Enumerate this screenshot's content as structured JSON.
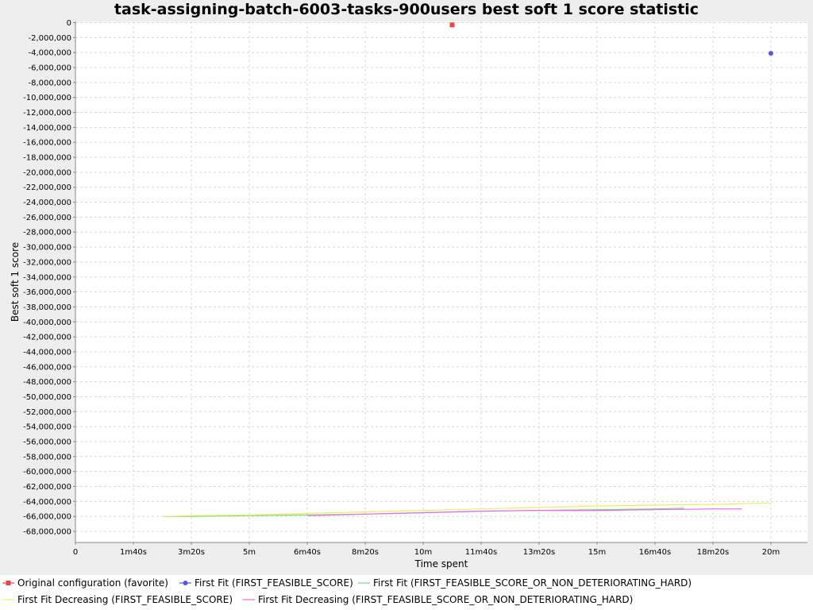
{
  "chart_data": {
    "type": "line",
    "title": "task-assigning-batch-6003-tasks-900users best soft 1 score statistic",
    "xlabel": "Time spent",
    "ylabel": "Best soft 1 score",
    "xlim": [
      0,
      1260
    ],
    "ylim": [
      -69000000,
      200000
    ],
    "x_ticks": [
      {
        "value": 0,
        "label": "0"
      },
      {
        "value": 100,
        "label": "1m40s"
      },
      {
        "value": 200,
        "label": "3m20s"
      },
      {
        "value": 300,
        "label": "5m"
      },
      {
        "value": 400,
        "label": "6m40s"
      },
      {
        "value": 500,
        "label": "8m20s"
      },
      {
        "value": 600,
        "label": "10m"
      },
      {
        "value": 700,
        "label": "11m40s"
      },
      {
        "value": 800,
        "label": "13m20s"
      },
      {
        "value": 900,
        "label": "15m"
      },
      {
        "value": 1000,
        "label": "16m40s"
      },
      {
        "value": 1100,
        "label": "18m20s"
      },
      {
        "value": 1200,
        "label": "20m"
      }
    ],
    "y_ticks": [
      {
        "value": 0,
        "label": "0"
      },
      {
        "value": -2000000,
        "label": "-2,000,000"
      },
      {
        "value": -4000000,
        "label": "-4,000,000"
      },
      {
        "value": -6000000,
        "label": "-6,000,000"
      },
      {
        "value": -8000000,
        "label": "-8,000,000"
      },
      {
        "value": -10000000,
        "label": "-10,000,000"
      },
      {
        "value": -12000000,
        "label": "-12,000,000"
      },
      {
        "value": -14000000,
        "label": "-14,000,000"
      },
      {
        "value": -16000000,
        "label": "-16,000,000"
      },
      {
        "value": -18000000,
        "label": "-18,000,000"
      },
      {
        "value": -20000000,
        "label": "-20,000,000"
      },
      {
        "value": -22000000,
        "label": "-22,000,000"
      },
      {
        "value": -24000000,
        "label": "-24,000,000"
      },
      {
        "value": -26000000,
        "label": "-26,000,000"
      },
      {
        "value": -28000000,
        "label": "-28,000,000"
      },
      {
        "value": -30000000,
        "label": "-30,000,000"
      },
      {
        "value": -32000000,
        "label": "-32,000,000"
      },
      {
        "value": -34000000,
        "label": "-34,000,000"
      },
      {
        "value": -36000000,
        "label": "-36,000,000"
      },
      {
        "value": -38000000,
        "label": "-38,000,000"
      },
      {
        "value": -40000000,
        "label": "-40,000,000"
      },
      {
        "value": -42000000,
        "label": "-42,000,000"
      },
      {
        "value": -44000000,
        "label": "-44,000,000"
      },
      {
        "value": -46000000,
        "label": "-46,000,000"
      },
      {
        "value": -48000000,
        "label": "-48,000,000"
      },
      {
        "value": -50000000,
        "label": "-50,000,000"
      },
      {
        "value": -52000000,
        "label": "-52,000,000"
      },
      {
        "value": -54000000,
        "label": "-54,000,000"
      },
      {
        "value": -56000000,
        "label": "-56,000,000"
      },
      {
        "value": -58000000,
        "label": "-58,000,000"
      },
      {
        "value": -60000000,
        "label": "-60,000,000"
      },
      {
        "value": -62000000,
        "label": "-62,000,000"
      },
      {
        "value": -64000000,
        "label": "-64,000,000"
      },
      {
        "value": -66000000,
        "label": "-66,000,000"
      },
      {
        "value": -68000000,
        "label": "-68,000,000"
      }
    ],
    "grid": true,
    "legend_position": "bottom",
    "series": [
      {
        "name": "Original configuration (favorite)",
        "color": "#ee4444",
        "marker": "square",
        "x": [
          650
        ],
        "y": [
          -300000
        ]
      },
      {
        "name": "First Fit (FIRST_FEASIBLE_SCORE)",
        "color": "#5555ee",
        "marker": "circle",
        "x": [
          1200
        ],
        "y": [
          -4100000
        ]
      },
      {
        "name": "First Fit (FIRST_FEASIBLE_SCORE_OR_NON_DETERIORATING_HARD)",
        "color": "#77dd77",
        "marker": "none",
        "x": [
          150,
          200,
          300,
          400,
          500,
          600,
          700,
          800,
          900,
          1000,
          1050
        ],
        "y": [
          -66000000,
          -66000000,
          -65900000,
          -65800000,
          -65700000,
          -65500000,
          -65300000,
          -65200000,
          -65100000,
          -65000000,
          -64900000
        ]
      },
      {
        "name": "First Fit Decreasing (FIRST_FEASIBLE_SCORE)",
        "color": "#eeee66",
        "marker": "none",
        "x": [
          150,
          200,
          300,
          400,
          500,
          600,
          700,
          800,
          900,
          1000,
          1100,
          1200
        ],
        "y": [
          -66000000,
          -65900000,
          -65800000,
          -65600000,
          -65400000,
          -65200000,
          -65000000,
          -64800000,
          -64600000,
          -64500000,
          -64400000,
          -64200000
        ]
      },
      {
        "name": "First Fit Decreasing (FIRST_FEASIBLE_SCORE_OR_NON_DETERIORATING_HARD)",
        "color": "#ee66ee",
        "marker": "none",
        "x": [
          400,
          450,
          500,
          550,
          600,
          650,
          700,
          800,
          900,
          1000,
          1100,
          1150
        ],
        "y": [
          -65900000,
          -65800000,
          -65700000,
          -65600000,
          -65500000,
          -65400000,
          -65300000,
          -65200000,
          -65200000,
          -65100000,
          -65000000,
          -65000000
        ]
      }
    ]
  }
}
